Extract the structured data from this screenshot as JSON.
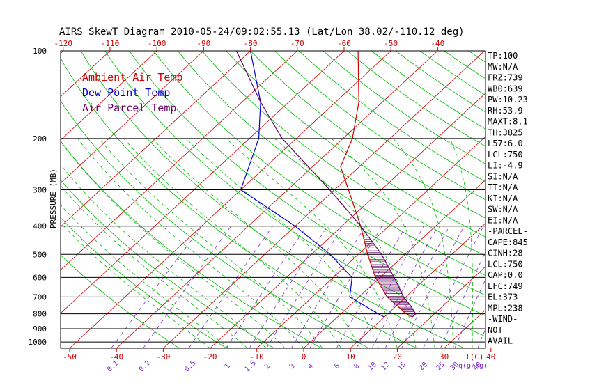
{
  "colors": {
    "ambient": "#cc0000",
    "dewpoint": "#0000cc",
    "parcel": "#660066",
    "isotherm": "#cc0000",
    "dry_adiabat": "#00bb00",
    "moist_adiabat": "#00bb00",
    "mixing_ratio": "#7a2fd0",
    "axis": "#000000",
    "temp_ticks": "#cc0000",
    "mixing_labels": "#7a2fd0"
  },
  "chart_data": {
    "type": "line",
    "title": "AIRS SkewT Diagram 2010-05-24/09:02:55.13 (Lat/Lon 38.02/-110.12 deg)",
    "ylabel": "PRESSURE (MB)",
    "y_scale": "log",
    "ylim": [
      1050,
      100
    ],
    "pressure_ticks": [
      100,
      200,
      300,
      400,
      500,
      600,
      700,
      800,
      900,
      1000
    ],
    "pressure_tick_labels": [
      "100",
      "200",
      "300",
      "400",
      "500",
      "600",
      "700",
      "800",
      "900",
      "1000"
    ],
    "bottom_temp_ticks": [
      -50,
      -40,
      -30,
      -20,
      -10,
      0,
      10,
      20,
      30,
      40
    ],
    "bottom_temp_tick_labels": [
      "-50",
      "-40",
      "-30",
      "-20",
      "-10",
      "0",
      "10",
      "20",
      "30",
      "40"
    ],
    "top_temp_ticks": [
      -120,
      -110,
      -100,
      -90,
      -80,
      -70,
      -60,
      -50,
      -40
    ],
    "top_temp_tick_labels": [
      "-120",
      "-110",
      "-100",
      "-90",
      "-80",
      "-70",
      "-60",
      "-50",
      "-40"
    ],
    "bottom_unit_label": "T(C)",
    "mixing_ratio_labels": [
      "0.1",
      "0.2",
      "0.5",
      "1",
      "1.5",
      "2",
      "3",
      "4",
      "6",
      "8",
      "10",
      "12",
      "15",
      "20",
      "25",
      "30",
      "40"
    ],
    "mixing_unit_label": "q(g/kg)",
    "legend": [
      "Ambient Air Temp",
      "Dew Point Temp",
      "Air Parcel Temp"
    ],
    "legend_position": "top-left",
    "series": [
      {
        "name": "Ambient Air Temp",
        "points": [
          [
            820,
            16.0
          ],
          [
            800,
            14.0
          ],
          [
            700,
            6.0
          ],
          [
            600,
            -1.0
          ],
          [
            500,
            -8.0
          ],
          [
            400,
            -16.0
          ],
          [
            300,
            -27.0
          ],
          [
            250,
            -34.0
          ],
          [
            200,
            -38.0
          ],
          [
            150,
            -45.0
          ],
          [
            100,
            -57.0
          ]
        ]
      },
      {
        "name": "Dew Point Temp",
        "points": [
          [
            820,
            10.0
          ],
          [
            800,
            8.0
          ],
          [
            700,
            -2.0
          ],
          [
            600,
            -6.0
          ],
          [
            500,
            -16.0
          ],
          [
            400,
            -30.0
          ],
          [
            300,
            -50.0
          ],
          [
            200,
            -58.0
          ],
          [
            150,
            -66.0
          ],
          [
            100,
            -80.0
          ]
        ]
      },
      {
        "name": "Air Parcel Temp",
        "points": [
          [
            820,
            16.0
          ],
          [
            800,
            16.0
          ],
          [
            750,
            13.0
          ],
          [
            700,
            9.5
          ],
          [
            600,
            3.0
          ],
          [
            500,
            -5.0
          ],
          [
            400,
            -16.0
          ],
          [
            300,
            -31.0
          ],
          [
            200,
            -53.0
          ],
          [
            150,
            -66.0
          ],
          [
            100,
            -83.0
          ]
        ]
      }
    ]
  },
  "indices": [
    "TP:100",
    "MW:N/A",
    "FRZ:739",
    "WB0:639",
    "PW:10.23",
    "RH:53.9",
    "MAXT:8.1",
    "TH:3825",
    "L57:6.0",
    "LCL:750",
    "LI:-4.9",
    "SI:N/A",
    "TT:N/A",
    "KI:N/A",
    "SW:N/A",
    "EI:N/A",
    "-PARCEL-",
    "CAPE:845",
    "CINH:28",
    "LCL:750",
    "CAP:0.0",
    "LFC:749",
    "EL:373",
    "MPL:238",
    "-WIND-",
    "NOT",
    "AVAIL"
  ]
}
